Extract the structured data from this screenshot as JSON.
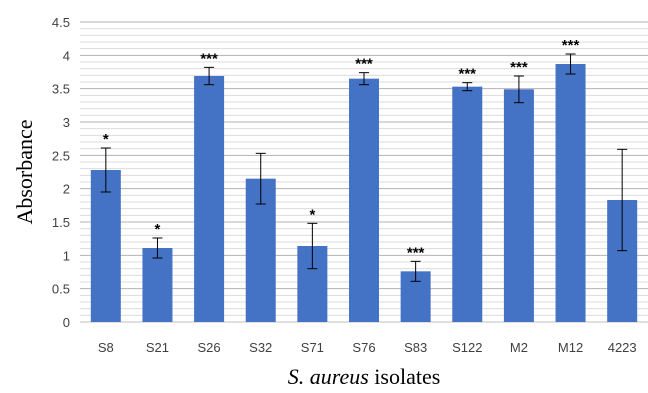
{
  "chart_data": {
    "type": "bar",
    "categories": [
      "S8",
      "S21",
      "S26",
      "S32",
      "S71",
      "S76",
      "S83",
      "S122",
      "M2",
      "M12",
      "4223"
    ],
    "values": [
      2.28,
      1.11,
      3.69,
      2.15,
      1.14,
      3.65,
      0.76,
      3.53,
      3.49,
      3.87,
      1.83
    ],
    "errors": [
      0.33,
      0.15,
      0.13,
      0.38,
      0.34,
      0.09,
      0.15,
      0.06,
      0.2,
      0.15,
      0.76
    ],
    "significance": [
      "*",
      "*",
      "***",
      "",
      "*",
      "***",
      "***",
      "***",
      "***",
      "***",
      ""
    ],
    "ylabel": "Absorbance",
    "xlabel_italic": "S. aureus",
    "xlabel_rest": " isolates",
    "ylim": [
      0,
      4.5
    ],
    "yticks": [
      "0",
      "0.5",
      "1",
      "1.5",
      "2",
      "2.5",
      "3",
      "3.5",
      "4",
      "4.5"
    ],
    "minor_gridline_step": 0.1,
    "bar_color": "#4472C4",
    "grid": true,
    "legend": "none"
  }
}
